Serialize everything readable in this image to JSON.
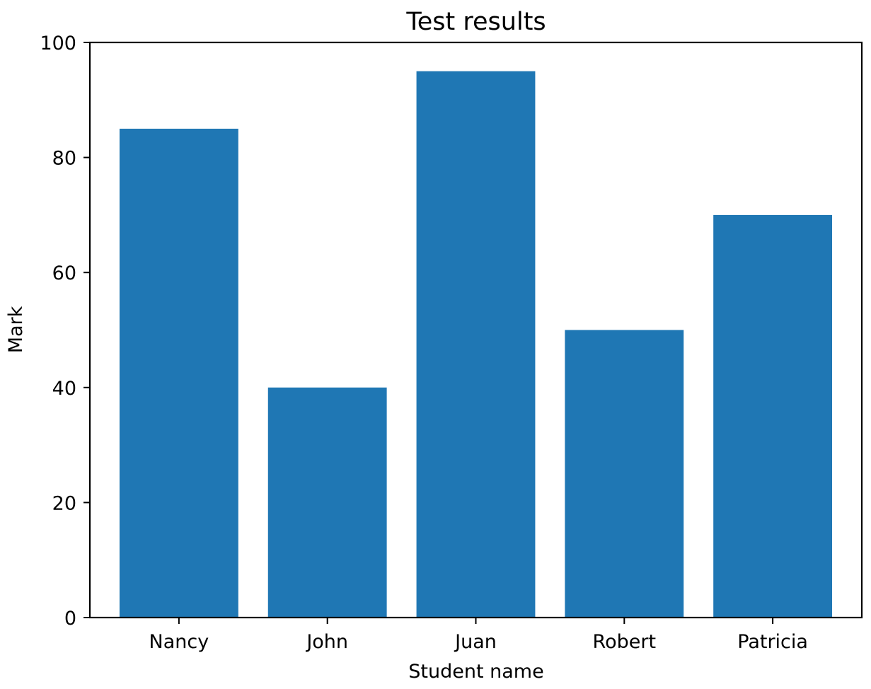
{
  "chart_data": {
    "type": "bar",
    "title": "Test results",
    "xlabel": "Student name",
    "ylabel": "Mark",
    "categories": [
      "Nancy",
      "John",
      "Juan",
      "Robert",
      "Patricia"
    ],
    "values": [
      85,
      40,
      95,
      50,
      70
    ],
    "ylim": [
      0,
      100
    ],
    "yticks": [
      0,
      20,
      40,
      60,
      80,
      100
    ],
    "bar_color": "#1f77b4",
    "grid": false,
    "legend": "none"
  }
}
